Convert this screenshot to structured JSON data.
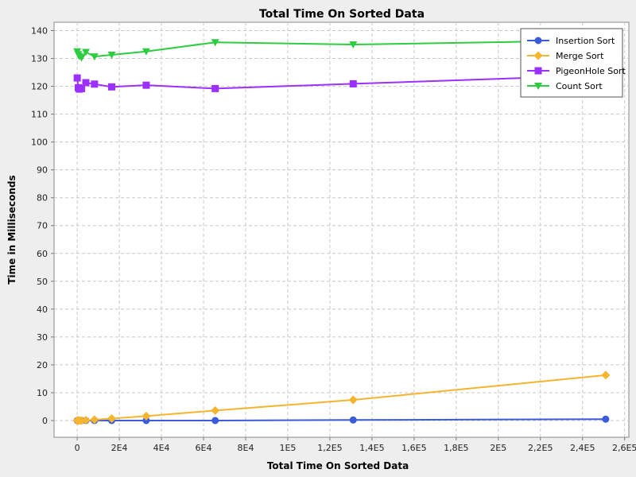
{
  "chart_data": {
    "type": "line",
    "title": "Total Time On Sorted Data",
    "xlabel": "Total Time On Sorted Data",
    "ylabel": "Time in Milliseconds",
    "xlim": [
      -11000,
      262000
    ],
    "ylim": [
      -6,
      143
    ],
    "xticks": [
      0,
      20000,
      40000,
      60000,
      80000,
      100000,
      120000,
      140000,
      160000,
      180000,
      200000,
      220000,
      240000,
      260000
    ],
    "xtick_labels": [
      "0",
      "2E4",
      "4E4",
      "6E4",
      "8E4",
      "1E5",
      "1,2E5",
      "1,4E5",
      "1,6E5",
      "1,8E5",
      "2E5",
      "2,2E5",
      "2,4E5",
      "2,6E5"
    ],
    "yticks": [
      0,
      10,
      20,
      30,
      40,
      50,
      60,
      70,
      80,
      90,
      100,
      110,
      120,
      130,
      140
    ],
    "ytick_labels": [
      "0",
      "10",
      "20",
      "30",
      "40",
      "50",
      "60",
      "70",
      "80",
      "90",
      "100",
      "110",
      "120",
      "130",
      "140"
    ],
    "grid": true,
    "legend_position": "top-right",
    "series": [
      {
        "name": "Insertion Sort",
        "color": "#3b5bdb",
        "marker": "circle",
        "points": [
          [
            0,
            0
          ],
          [
            256,
            0
          ],
          [
            512,
            0
          ],
          [
            1024,
            0
          ],
          [
            2048,
            0
          ],
          [
            4096,
            0
          ],
          [
            8192,
            0
          ],
          [
            16384,
            0
          ],
          [
            32768,
            0
          ],
          [
            65536,
            0
          ],
          [
            131072,
            0.2
          ],
          [
            251000,
            0.5
          ]
        ]
      },
      {
        "name": "Merge Sort",
        "color": "#f5b52e",
        "marker": "diamond",
        "points": [
          [
            0,
            0
          ],
          [
            256,
            0
          ],
          [
            512,
            0
          ],
          [
            1024,
            0
          ],
          [
            2048,
            0
          ],
          [
            4096,
            0.1
          ],
          [
            8192,
            0.3
          ],
          [
            16384,
            0.7
          ],
          [
            32768,
            1.6
          ],
          [
            65536,
            3.6
          ],
          [
            131072,
            7.4
          ],
          [
            251000,
            16.3
          ]
        ]
      },
      {
        "name": "PigeonHole Sort",
        "color": "#9b30ff",
        "marker": "square",
        "points": [
          [
            0,
            123
          ],
          [
            512,
            119.5
          ],
          [
            1024,
            119
          ],
          [
            2048,
            119.2
          ],
          [
            4096,
            121.3
          ],
          [
            8192,
            120.8
          ],
          [
            16384,
            119.8
          ],
          [
            32768,
            120.4
          ],
          [
            65536,
            119.2
          ],
          [
            131072,
            120.9
          ],
          [
            251000,
            124
          ]
        ]
      },
      {
        "name": "Count Sort",
        "color": "#2ecc40",
        "marker": "triangle-down",
        "points": [
          [
            0,
            132.5
          ],
          [
            512,
            131.5
          ],
          [
            1024,
            130.8
          ],
          [
            2048,
            130.3
          ],
          [
            4096,
            132.3
          ],
          [
            8192,
            130.7
          ],
          [
            16384,
            131.3
          ],
          [
            32768,
            132.5
          ],
          [
            65536,
            135.8
          ],
          [
            131072,
            135
          ],
          [
            251000,
            136.5
          ]
        ]
      }
    ]
  }
}
